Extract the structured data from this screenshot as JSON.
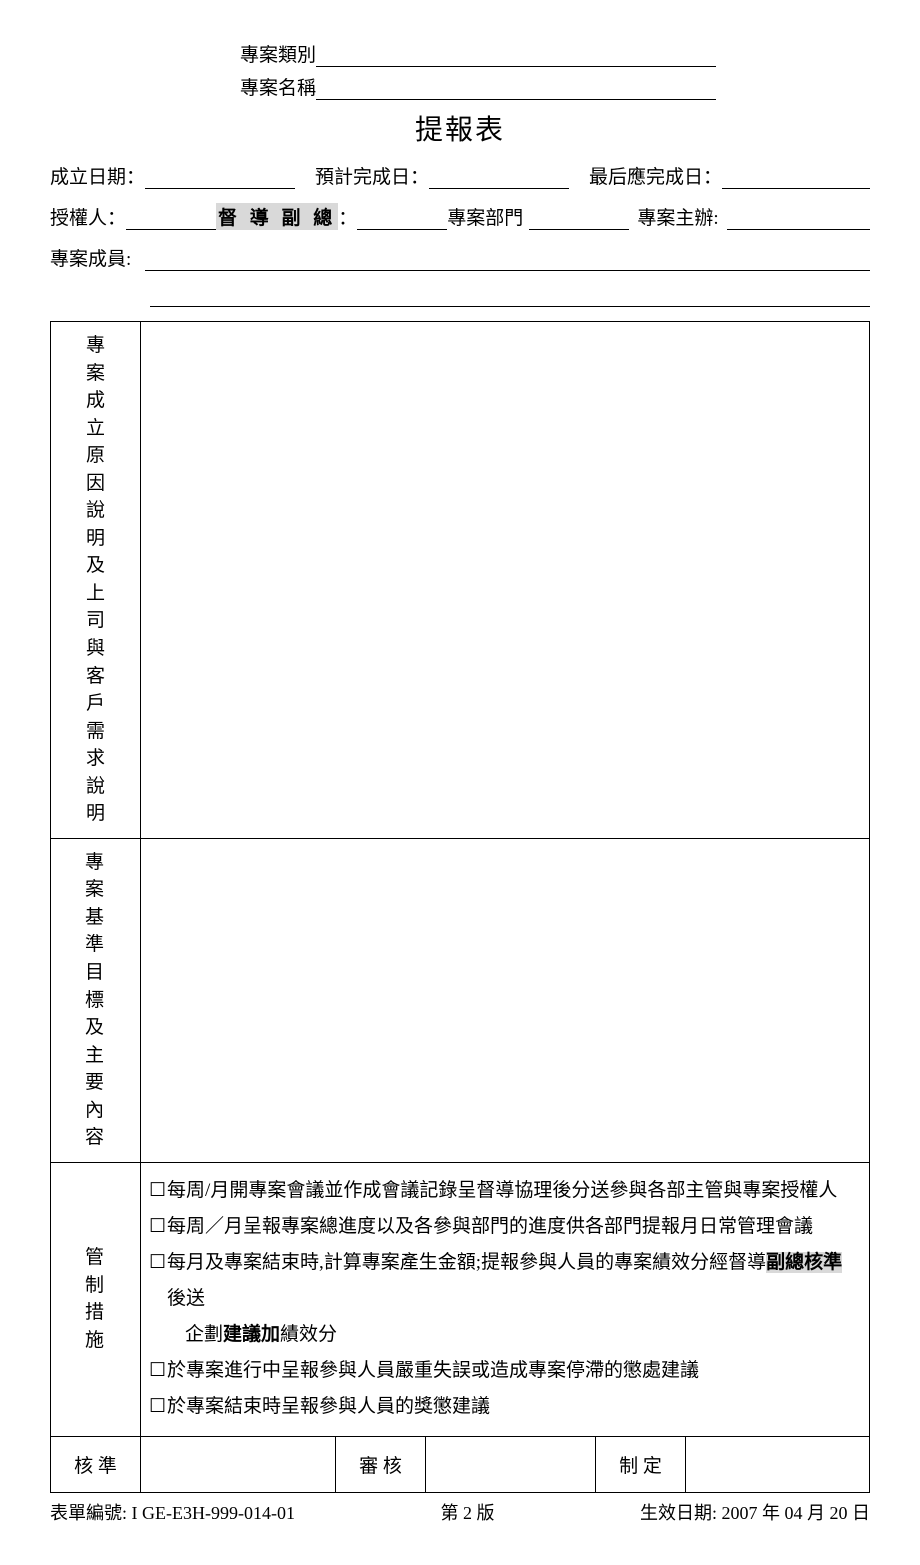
{
  "header": {
    "category_label": "專案類別",
    "name_label": "專案名稱",
    "title": "提報表"
  },
  "fields": {
    "establish_date": "成立日期：",
    "expected_date": "預計完成日：",
    "final_date": "最后應完成日：",
    "authorizer": "授權人：",
    "supervisor_vp": "督 導 副 總",
    "colon": "：",
    "project_dept": "專案部門",
    "project_owner": "專案主辦:",
    "members": "專案成員:"
  },
  "sections": {
    "reason": "專案成立原因說明及上司與客戶需求說明",
    "target": "專案基準目標及主要內容",
    "control": "管制措施"
  },
  "control_items": [
    "每周/月開專案會議並作成會議記錄呈督導協理後分送參與各部主管與專案授權人",
    "每周／月呈報專案總進度以及各參與部門的進度供各部門提報月日常管理會議"
  ],
  "control_item3": {
    "pre": "每月及專案結束時,計算專案產生金額;提報參與人員的專案績效分經督導",
    "hl": "副總核準",
    "post": "後送",
    "cont_pre": "企劃",
    "cont_bold": "建議加",
    "cont_post": "績效分"
  },
  "control_items_tail": [
    "於專案進行中呈報參與人員嚴重失誤或造成專案停滯的懲處建議",
    "於專案結束時呈報參與人員的獎懲建議"
  ],
  "approval": {
    "approve": "核 準",
    "review": "審 核",
    "draft": "制 定"
  },
  "footer": {
    "form_no": "表單編號: I GE-E3H-999-014-01",
    "version": "第 2 版",
    "eff_date": "生效日期: 2007 年 04 月 20 日"
  },
  "colors": {
    "highlight": "#d9d9d9",
    "border": "#000000",
    "text": "#000000",
    "bg": "#ffffff"
  }
}
